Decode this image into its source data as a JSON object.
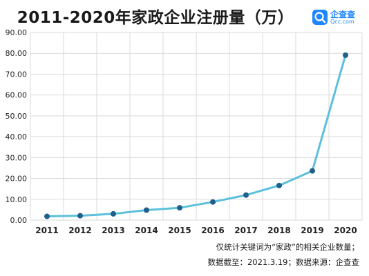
{
  "title": "2011-2020年家政企业注册量（万）",
  "brand": {
    "name": "企查查",
    "domain": "Qcc.com",
    "color": "#1e86ff"
  },
  "notes": {
    "line1": "仅统计关键词为“家政”的相关企业数量；",
    "line2": "数据截至：2021.3.19；数据来源：企查查"
  },
  "chart_data": {
    "type": "line",
    "title": "2011-2020年家政企业注册量（万）",
    "xlabel": "",
    "ylabel": "",
    "categories": [
      "2011",
      "2012",
      "2013",
      "2014",
      "2015",
      "2016",
      "2017",
      "2018",
      "2019",
      "2020"
    ],
    "series": [
      {
        "values": [
          1.8,
          2.1,
          3.0,
          4.8,
          5.9,
          8.7,
          12.0,
          16.6,
          23.6,
          79.1
        ]
      }
    ],
    "ylim": [
      0,
      90
    ],
    "yticks": [
      "0.00",
      "10.00",
      "20.00",
      "30.00",
      "40.00",
      "50.00",
      "60.00",
      "70.00",
      "80.00",
      "90.00"
    ],
    "grid": true,
    "line_color": "#5bc0dc",
    "marker_color": "#1f5f8b"
  }
}
